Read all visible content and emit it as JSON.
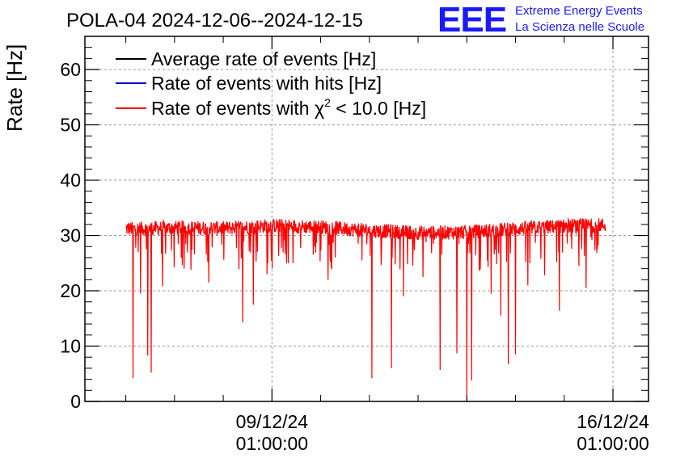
{
  "header": {
    "title": "POLA-04 2024-12-06--2024-12-15",
    "logo_text": "EEE",
    "logo_line1": "Extreme Energy Events",
    "logo_line2": "La Scienza nelle Scuole"
  },
  "colors": {
    "average": "#000000",
    "hits": "#0000cc",
    "chi2": "#ff0000",
    "logo": "#1a1aff",
    "grid": "#9a9a9a"
  },
  "chart_data": {
    "type": "line",
    "title": "POLA-04 2024-12-06--2024-12-15",
    "xlabel": "",
    "ylabel": "Rate [Hz]",
    "ylim": [
      0,
      66
    ],
    "xlim_days": [
      -3.84,
      7.73
    ],
    "x_reference": "09/12/24 01:00:00",
    "y_ticks": [
      0,
      10,
      20,
      30,
      40,
      50,
      60
    ],
    "x_ticks": [
      {
        "day": 0,
        "date": "09/12/24",
        "time": "01:00:00"
      },
      {
        "day": 7,
        "date": "16/12/24",
        "time": "01:00:00"
      }
    ],
    "grid": true,
    "legend_position": "top-left",
    "legend": [
      {
        "name": "Average rate of events [Hz]",
        "color": "#000000"
      },
      {
        "name": "Rate of events with hits [Hz]",
        "color": "#0000cc"
      },
      {
        "name_prefix": "Rate of events with ",
        "symbol": "χ",
        "superscript": "2",
        "name_suffix": " < 10.0 [Hz]",
        "color": "#ff0000"
      }
    ],
    "series": [
      {
        "name": "Rate of events with χ2 < 10.0 [Hz]",
        "x_range_days": [
          -3.0,
          6.85
        ],
        "baseline": [
          [
            -3.0,
            31.2
          ],
          [
            -2.0,
            31.4
          ],
          [
            -1.0,
            31.3
          ],
          [
            0.0,
            31.8
          ],
          [
            1.0,
            31.5
          ],
          [
            2.0,
            30.9
          ],
          [
            3.0,
            30.5
          ],
          [
            4.0,
            30.6
          ],
          [
            5.0,
            31.2
          ],
          [
            6.0,
            31.7
          ],
          [
            6.85,
            31.9
          ]
        ],
        "noise_band": 1.3,
        "dips": [
          [
            -2.85,
            4.2
          ],
          [
            -2.55,
            8.3
          ],
          [
            -2.48,
            5.2
          ],
          [
            -2.7,
            19.5
          ],
          [
            -2.25,
            20.8
          ],
          [
            -1.3,
            21.5
          ],
          [
            -0.6,
            14.3
          ],
          [
            -0.38,
            17.5
          ],
          [
            -0.1,
            23.0
          ],
          [
            0.3,
            25.0
          ],
          [
            1.15,
            22.0
          ],
          [
            2.05,
            4.2
          ],
          [
            2.45,
            6.0
          ],
          [
            2.7,
            19.0
          ],
          [
            3.1,
            22.5
          ],
          [
            3.45,
            5.7
          ],
          [
            3.8,
            8.7
          ],
          [
            4.0,
            0.0
          ],
          [
            4.1,
            3.8
          ],
          [
            4.5,
            19.5
          ],
          [
            4.7,
            15.5
          ],
          [
            4.85,
            6.7
          ],
          [
            5.0,
            8.5
          ],
          [
            5.25,
            21.0
          ],
          [
            5.6,
            22.8
          ],
          [
            5.9,
            16.4
          ],
          [
            6.45,
            20.5
          ],
          [
            6.3,
            24.5
          ]
        ]
      }
    ]
  }
}
